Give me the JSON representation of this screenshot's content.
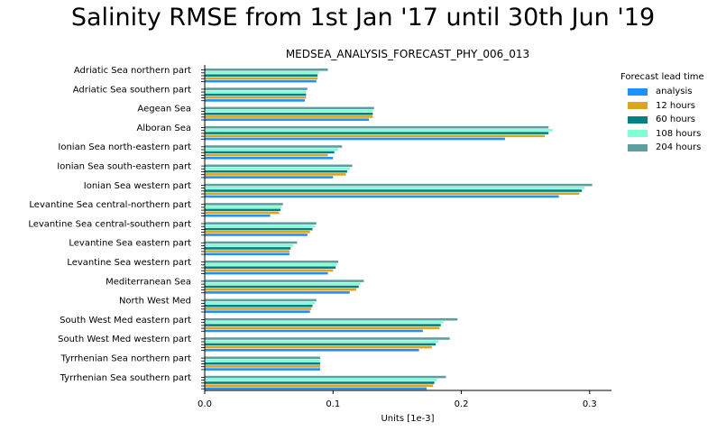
{
  "figure": {
    "suptitle": "Salinity RMSE from 1st Jan '17 until 30th Jun '19"
  },
  "chart_data": {
    "type": "bar",
    "orientation": "horizontal",
    "title": "MEDSEA_ANALYSIS_FORECAST_PHY_006_013",
    "xlabel": "Units [1e-3]",
    "ylabel": "",
    "xlim": [
      0,
      0.317
    ],
    "xticks": [
      "0.0",
      "0.1",
      "0.2",
      "0.3"
    ],
    "grid": false,
    "legend": {
      "title": "Forecast lead time",
      "position": "right"
    },
    "categories": [
      "Adriatic Sea northern part",
      "Adriatic Sea southern part",
      "Aegean Sea",
      "Alboran Sea",
      "Ionian Sea north-eastern part",
      "Ionian Sea south-eastern part",
      "Ionian Sea western part",
      "Levantine Sea central-northern part",
      "Levantine Sea central-southern part",
      "Levantine Sea eastern part",
      "Levantine Sea western part",
      "Mediterranean Sea",
      "North West Med",
      "South West Med eastern part",
      "South West Med western part",
      "Tyrrhenian Sea northern part",
      "Tyrrhenian Sea southern part"
    ],
    "series": [
      {
        "name": "analysis",
        "color": "#1e90ff",
        "values": [
          0.087,
          0.078,
          0.128,
          0.234,
          0.1,
          0.1,
          0.276,
          0.051,
          0.08,
          0.066,
          0.096,
          0.113,
          0.082,
          0.17,
          0.167,
          0.09,
          0.173
        ]
      },
      {
        "name": "12 hours",
        "color": "#daa520",
        "values": [
          0.088,
          0.079,
          0.131,
          0.265,
          0.096,
          0.11,
          0.292,
          0.058,
          0.082,
          0.066,
          0.1,
          0.118,
          0.083,
          0.183,
          0.177,
          0.09,
          0.178
        ]
      },
      {
        "name": "60 hours",
        "color": "#008080",
        "values": [
          0.088,
          0.079,
          0.131,
          0.268,
          0.101,
          0.111,
          0.294,
          0.059,
          0.084,
          0.067,
          0.102,
          0.12,
          0.084,
          0.184,
          0.18,
          0.09,
          0.179
        ]
      },
      {
        "name": "108 hours",
        "color": "#7fffd4",
        "values": [
          0.089,
          0.079,
          0.131,
          0.271,
          0.104,
          0.113,
          0.296,
          0.06,
          0.086,
          0.069,
          0.103,
          0.121,
          0.086,
          0.186,
          0.182,
          0.09,
          0.181
        ]
      },
      {
        "name": "204 hours",
        "color": "#5f9ea0",
        "values": [
          0.096,
          0.08,
          0.132,
          0.268,
          0.107,
          0.115,
          0.302,
          0.061,
          0.087,
          0.072,
          0.104,
          0.124,
          0.087,
          0.197,
          0.191,
          0.09,
          0.188
        ]
      }
    ]
  }
}
